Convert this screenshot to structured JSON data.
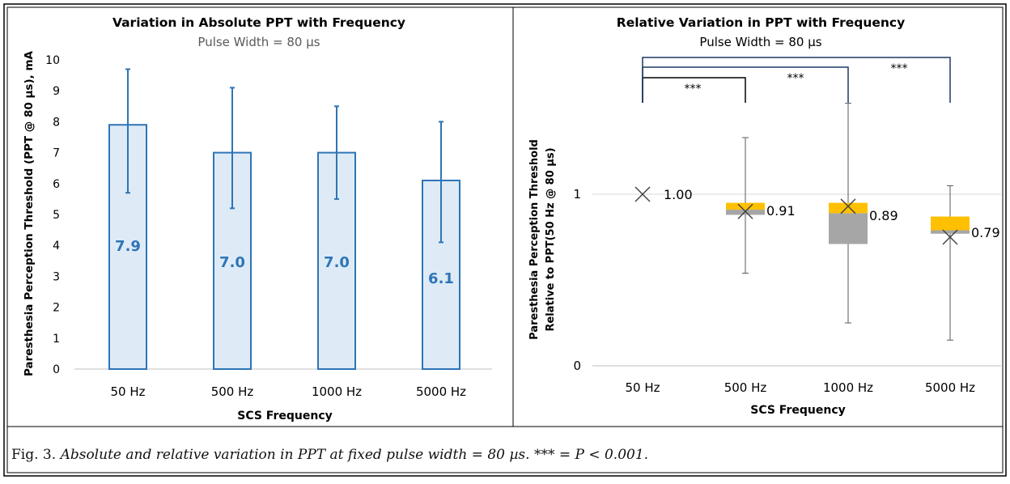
{
  "chart_data": [
    {
      "type": "bar",
      "title": "Variation in Absolute PPT with Frequency",
      "subtitle": "Pulse Width = 80 µs",
      "xlabel": "SCS Frequency",
      "ylabel": "Paresthesia Perception Threshold (PPT @ 80 µs), mA",
      "ylim": [
        0,
        10
      ],
      "yticks": [
        "0",
        "1",
        "2",
        "3",
        "4",
        "5",
        "6",
        "7",
        "8",
        "9",
        "10"
      ],
      "categories": [
        "50 Hz",
        "500 Hz",
        "1000 Hz",
        "5000 Hz"
      ],
      "values": [
        7.9,
        7.0,
        7.0,
        6.1
      ],
      "value_labels": [
        "7.9",
        "7.0",
        "7.0",
        "6.1"
      ],
      "error_low": [
        5.7,
        5.2,
        5.5,
        4.1
      ],
      "error_high": [
        9.7,
        9.1,
        8.5,
        8.0
      ],
      "grid": false,
      "colors": {
        "bar_fill": "#deebf7",
        "bar_stroke": "#2e75b6",
        "label": "#2e75b6"
      }
    },
    {
      "type": "box",
      "title": "Relative Variation in PPT with Frequency",
      "subtitle": "Pulse Width = 80 µs",
      "xlabel": "SCS Frequency",
      "ylabel_lines": [
        "Paresthesia Perception Threshold",
        "Relative to PPT(50 Hz @ 80 µs)"
      ],
      "ylim": [
        0,
        1.5
      ],
      "yticks": [
        0,
        1
      ],
      "ytick_labels": [
        "0",
        "1"
      ],
      "categories": [
        "50 Hz",
        "500 Hz",
        "1000 Hz",
        "5000 Hz"
      ],
      "mean": [
        1.0,
        0.9,
        0.93,
        0.75
      ],
      "mean_labels": [
        "1.00",
        "0.91",
        "0.89",
        "0.79"
      ],
      "q1": [
        1.0,
        0.88,
        0.71,
        0.77
      ],
      "median": [
        1.0,
        0.91,
        0.89,
        0.79
      ],
      "q3": [
        1.0,
        0.95,
        0.95,
        0.87
      ],
      "whisker_low": [
        1.0,
        0.54,
        0.25,
        0.15
      ],
      "whisker_high": [
        1.0,
        1.33,
        1.53,
        1.05
      ],
      "significance": [
        {
          "from": "50 Hz",
          "to": "500 Hz",
          "label": "***"
        },
        {
          "from": "50 Hz",
          "to": "1000 Hz",
          "label": "***"
        },
        {
          "from": "50 Hz",
          "to": "5000 Hz",
          "label": "***"
        }
      ],
      "grid": true,
      "colors": {
        "upper_box": "#ffc000",
        "lower_box": "#a6a6a6",
        "bracket": "#1f3864",
        "whisker": "#595959",
        "grid": "#d9d9d9"
      }
    }
  ],
  "caption": {
    "label": "Fig. 3.",
    "text": "Absolute and relative variation in PPT at fixed pulse width = 80 µs. *** = P < 0.001."
  }
}
